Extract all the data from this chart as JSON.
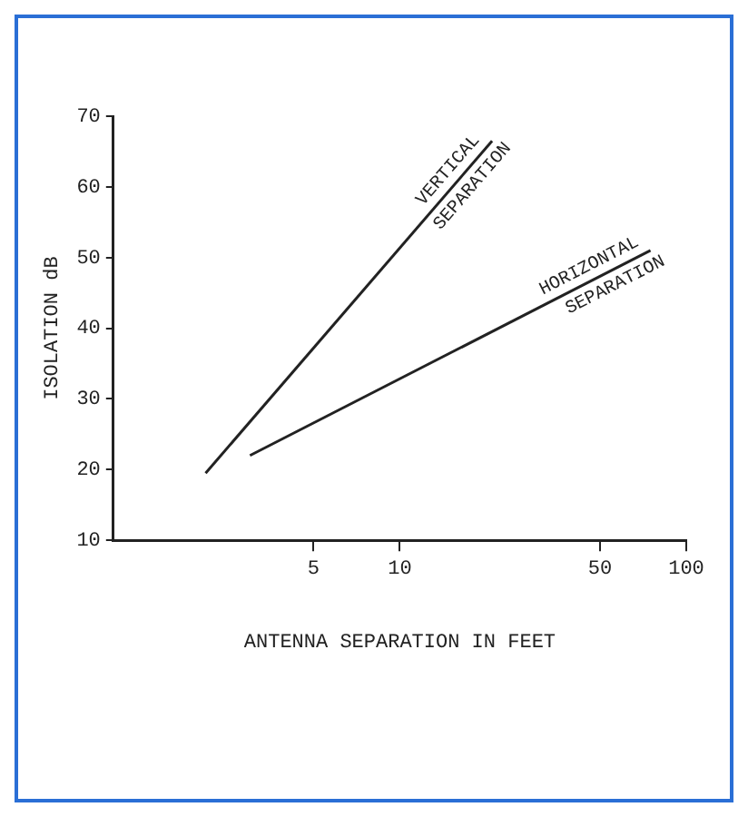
{
  "chart_data": {
    "type": "line",
    "xlabel": "ANTENNA SEPARATION IN FEET",
    "ylabel": "ISOLATION dB",
    "log": "x",
    "xlim": [
      1,
      100
    ],
    "xticks": [
      5,
      10,
      50,
      100
    ],
    "ylim": [
      10,
      70
    ],
    "yticks": [
      10,
      20,
      30,
      40,
      50,
      60,
      70
    ],
    "grid": false,
    "legend": false,
    "marker": "none",
    "line_style": "solid",
    "series": [
      {
        "name": "VERTICAL SEPARATION",
        "color": "#222222",
        "x": [
          2.1,
          21
        ],
        "values": [
          19.5,
          66.5
        ]
      },
      {
        "name": "HORIZONTAL SEPARATION",
        "color": "#222222",
        "x": [
          3,
          75
        ],
        "values": [
          22,
          51
        ]
      }
    ]
  }
}
